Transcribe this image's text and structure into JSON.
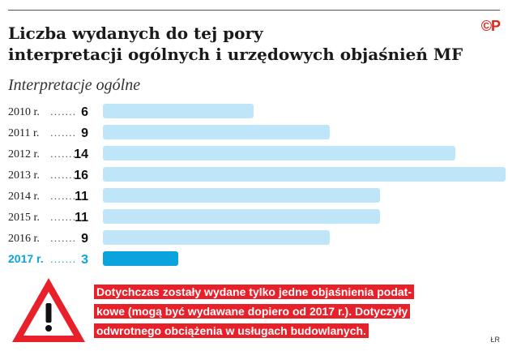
{
  "header": {
    "title_line1": "Liczba wydanych do tej pory",
    "title_line2": "interpretacji ogólnych i urzędowych objaśnień MF",
    "logo": "©P"
  },
  "chart_data": {
    "type": "bar",
    "orientation": "horizontal",
    "title": "Liczba wydanych do tej pory interpretacji ogólnych i urzędowych objaśnień MF",
    "subtitle": "Interpretacje ogólne",
    "categories": [
      "2010 r.",
      "2011 r.",
      "2012 r.",
      "2013 r.",
      "2014 r.",
      "2015 r.",
      "2016 r.",
      "2017 r."
    ],
    "values": [
      6,
      9,
      14,
      16,
      11,
      11,
      9,
      3
    ],
    "xlim": [
      0,
      16
    ],
    "highlight_index": 7,
    "colors": {
      "bar": "#bfe6f8",
      "highlight": "#0aa3dd",
      "highlight_text": "#0aa3dd"
    },
    "grid": false,
    "legend": "none"
  },
  "note": {
    "lines": [
      "Dotychczas zostały wydane tylko jedne objaśnienia podat-",
      "kowe (mogą być wydawane dopiero od 2017 r.). Dotyczyły",
      "odwrotnego obciążenia w usługach budowlanych."
    ],
    "icon": "warning-triangle-icon",
    "color": "#e8202a"
  },
  "credit": "ŁR"
}
